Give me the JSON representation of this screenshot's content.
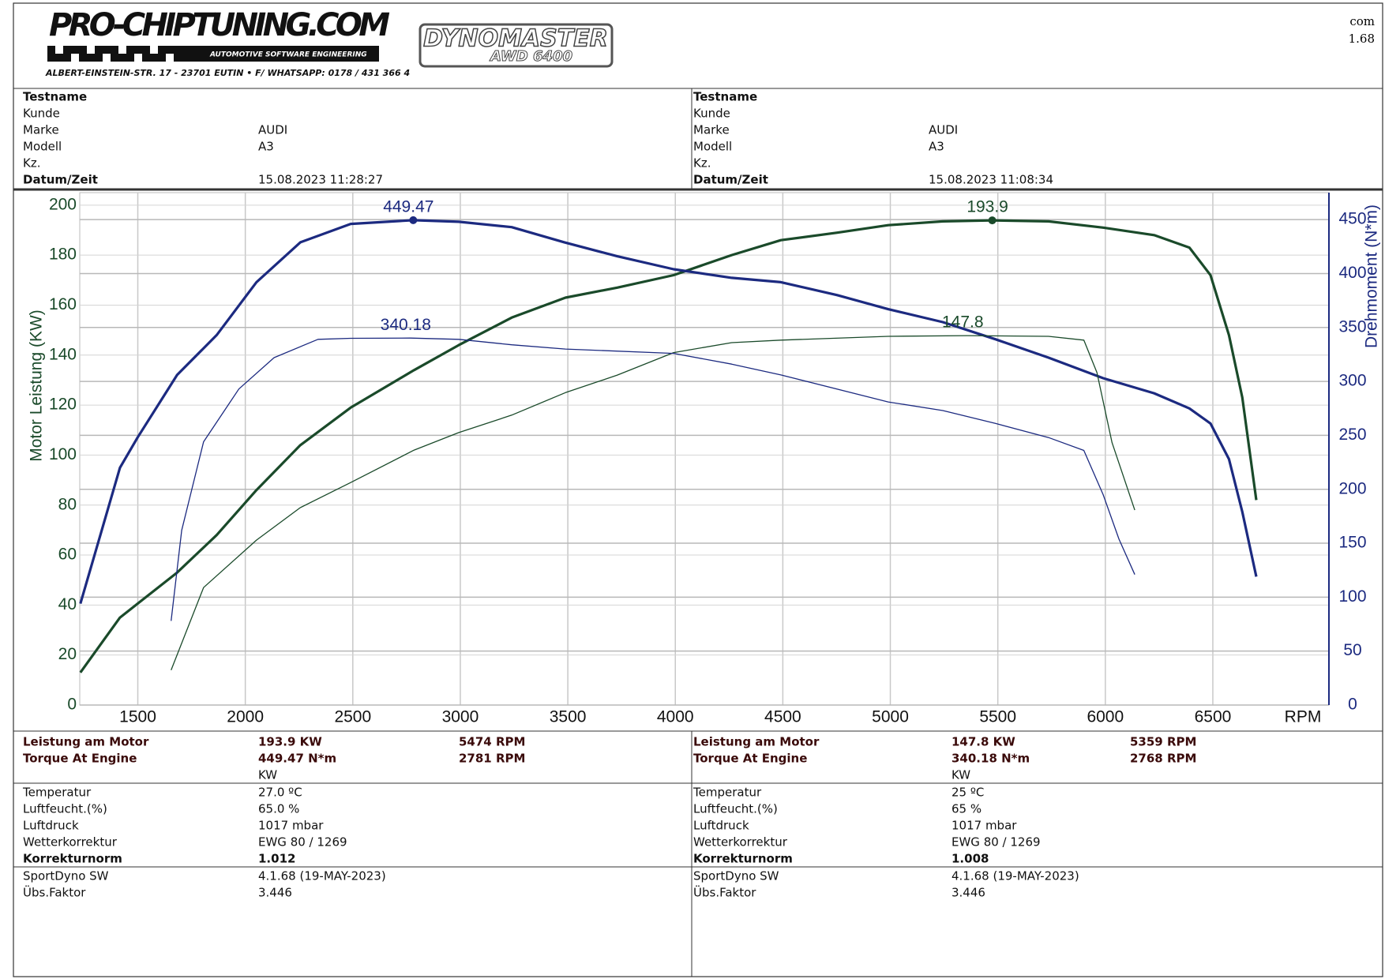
{
  "header": {
    "logo": "PRO-CHIPTUNING.COM",
    "tagline": "AUTOMOTIVE SOFTWARE ENGINEERING",
    "address": "ALBERT-EINSTEIN-STR. 17 - 23701 EUTIN • F/ WHATSAPP: 0178 / 431 366 4",
    "dyno_brand": "DYNOMASTER",
    "dyno_model": "AWD 6400",
    "corner": [
      "com",
      "1.68"
    ]
  },
  "runs": [
    {
      "info": [
        {
          "label": "Testname",
          "bold": true
        },
        {
          "label": "Kunde"
        },
        {
          "label": "Marke",
          "value": "AUDI"
        },
        {
          "label": "Modell",
          "value": "A3"
        },
        {
          "label": "Kz."
        },
        {
          "label": "Datum/Zeit",
          "value": "15.08.2023 11:28:27",
          "bold": true
        }
      ],
      "results": [
        {
          "label": "Leistung am Motor",
          "value": "193.9 KW",
          "rpm": "5474 RPM"
        },
        {
          "label": "Torque At Engine",
          "value": "449.47 N*m",
          "rpm": "2781 RPM"
        }
      ],
      "unit": "KW",
      "conditions": [
        {
          "label": "Temperatur",
          "value": "27.0 ºC"
        },
        {
          "label": "Luftfeucht.(%)",
          "value": "65.0 %"
        },
        {
          "label": "Luftdruck",
          "value": "1017 mbar"
        },
        {
          "label": "Wetterkorrektur",
          "value": "EWG 80 / 1269"
        },
        {
          "label": "Korrekturnorm",
          "value": "1.012",
          "bold": true
        }
      ],
      "software": [
        {
          "label": "SportDyno SW",
          "value": "4.1.68 (19-MAY-2023)"
        },
        {
          "label": "Übs.Faktor",
          "value": "3.446"
        }
      ]
    },
    {
      "info": [
        {
          "label": "Testname",
          "bold": true
        },
        {
          "label": "Kunde"
        },
        {
          "label": "Marke",
          "value": "AUDI"
        },
        {
          "label": "Modell",
          "value": "A3"
        },
        {
          "label": "Kz."
        },
        {
          "label": "Datum/Zeit",
          "value": "15.08.2023 11:08:34",
          "bold": true
        }
      ],
      "results": [
        {
          "label": "Leistung am Motor",
          "value": "147.8 KW",
          "rpm": "5359 RPM"
        },
        {
          "label": "Torque At Engine",
          "value": "340.18 N*m",
          "rpm": "2768 RPM"
        }
      ],
      "unit": "KW",
      "conditions": [
        {
          "label": "Temperatur",
          "value": "25 ºC"
        },
        {
          "label": "Luftfeucht.(%)",
          "value": "65 %"
        },
        {
          "label": "Luftdruck",
          "value": "1017 mbar"
        },
        {
          "label": "Wetterkorrektur",
          "value": "EWG 80 / 1269"
        },
        {
          "label": "Korrekturnorm",
          "value": "1.008",
          "bold": true
        }
      ],
      "software": [
        {
          "label": "SportDyno SW",
          "value": "4.1.68 (19-MAY-2023)"
        },
        {
          "label": "Übs.Faktor",
          "value": "3.446"
        }
      ]
    }
  ],
  "chart_data": {
    "type": "line",
    "x_label": "RPM",
    "y_label": "Motor Leistung (KW)",
    "y2_label": "Drehmoment (N*m)",
    "xlim": [
      1230,
      7040
    ],
    "xticks": [
      1500,
      2000,
      2500,
      3000,
      3500,
      4000,
      4500,
      5000,
      5500,
      6000,
      6500
    ],
    "ylim": [
      0,
      205
    ],
    "yticks": [
      0,
      20,
      40,
      60,
      80,
      100,
      120,
      140,
      160,
      180,
      200
    ],
    "y2lim": [
      0,
      475
    ],
    "y2ticks": [
      0,
      50,
      100,
      150,
      200,
      250,
      300,
      350,
      400,
      450
    ],
    "grid": true,
    "y_color": "#1a4a2a",
    "y2_color": "#1c2a80",
    "series": [
      {
        "color": "#1a4a2a",
        "width": 3.2,
        "x": [
          1233,
          1417,
          1683,
          1867,
          2052,
          2256,
          2490,
          2785,
          2993,
          3239,
          3489,
          3730,
          3992,
          4262,
          4491,
          4753,
          4990,
          5244,
          5474,
          5736,
          5990,
          6227,
          6391,
          6489,
          6575,
          6637,
          6702
        ],
        "values": [
          13,
          35,
          53,
          68,
          86,
          104,
          119,
          134,
          144,
          155,
          163,
          167,
          172,
          180,
          186,
          189,
          192,
          193.5,
          193.9,
          193.5,
          191,
          188,
          183,
          172,
          148,
          123,
          82
        ]
      },
      {
        "color": "#1c2a80",
        "width": 3.2,
        "axis": "y2",
        "x": [
          1233,
          1417,
          1499,
          1683,
          1867,
          2052,
          2256,
          2490,
          2781,
          2993,
          3239,
          3484,
          3730,
          3992,
          4262,
          4491,
          4753,
          4990,
          5244,
          5490,
          5736,
          5990,
          6227,
          6391,
          6489,
          6575,
          6637,
          6702
        ],
        "values": [
          94,
          220,
          248,
          306,
          343,
          392,
          429,
          446,
          449.47,
          448,
          443,
          429,
          416,
          404,
          396,
          392,
          380,
          367,
          355,
          339,
          322,
          303,
          289,
          275,
          261,
          228,
          179,
          119
        ]
      },
      {
        "color": "#1a4a2a",
        "width": 1.3,
        "x": [
          1655,
          1806,
          2052,
          2256,
          2490,
          2785,
          2993,
          3239,
          3489,
          3730,
          3992,
          4262,
          4491,
          4990,
          5359,
          5736,
          5900,
          5961,
          6031,
          6137
        ],
        "values": [
          14,
          47,
          66,
          79,
          89,
          102,
          109,
          116,
          125,
          132,
          141,
          145,
          146,
          147.5,
          147.8,
          147.5,
          146,
          133,
          105,
          78
        ]
      },
      {
        "color": "#1c2a80",
        "width": 1.3,
        "axis": "y2",
        "x": [
          1655,
          1704,
          1806,
          1970,
          2134,
          2338,
          2490,
          2768,
          2993,
          3239,
          3489,
          3992,
          4262,
          4491,
          4990,
          5244,
          5490,
          5736,
          5900,
          5990,
          6063,
          6137
        ],
        "values": [
          78,
          162,
          244,
          293,
          322,
          339,
          340,
          340.18,
          339,
          334,
          330,
          326,
          316,
          306,
          281,
          273,
          261,
          248,
          236,
          195,
          154,
          121
        ]
      }
    ],
    "annotations": [
      {
        "label": "449.47",
        "x": 2781,
        "y": 449.47,
        "axis": "y2",
        "color": "#1c2a80",
        "marker": true
      },
      {
        "label": "193.9",
        "x": 5474,
        "y": 193.9,
        "color": "#1a4a2a",
        "marker": true
      },
      {
        "label": "340.18",
        "x": 2768,
        "y": 340.18,
        "axis": "y2",
        "color": "#1c2a80"
      },
      {
        "label": "147.8",
        "x": 5359,
        "y": 147.8,
        "color": "#1a4a2a"
      }
    ]
  }
}
